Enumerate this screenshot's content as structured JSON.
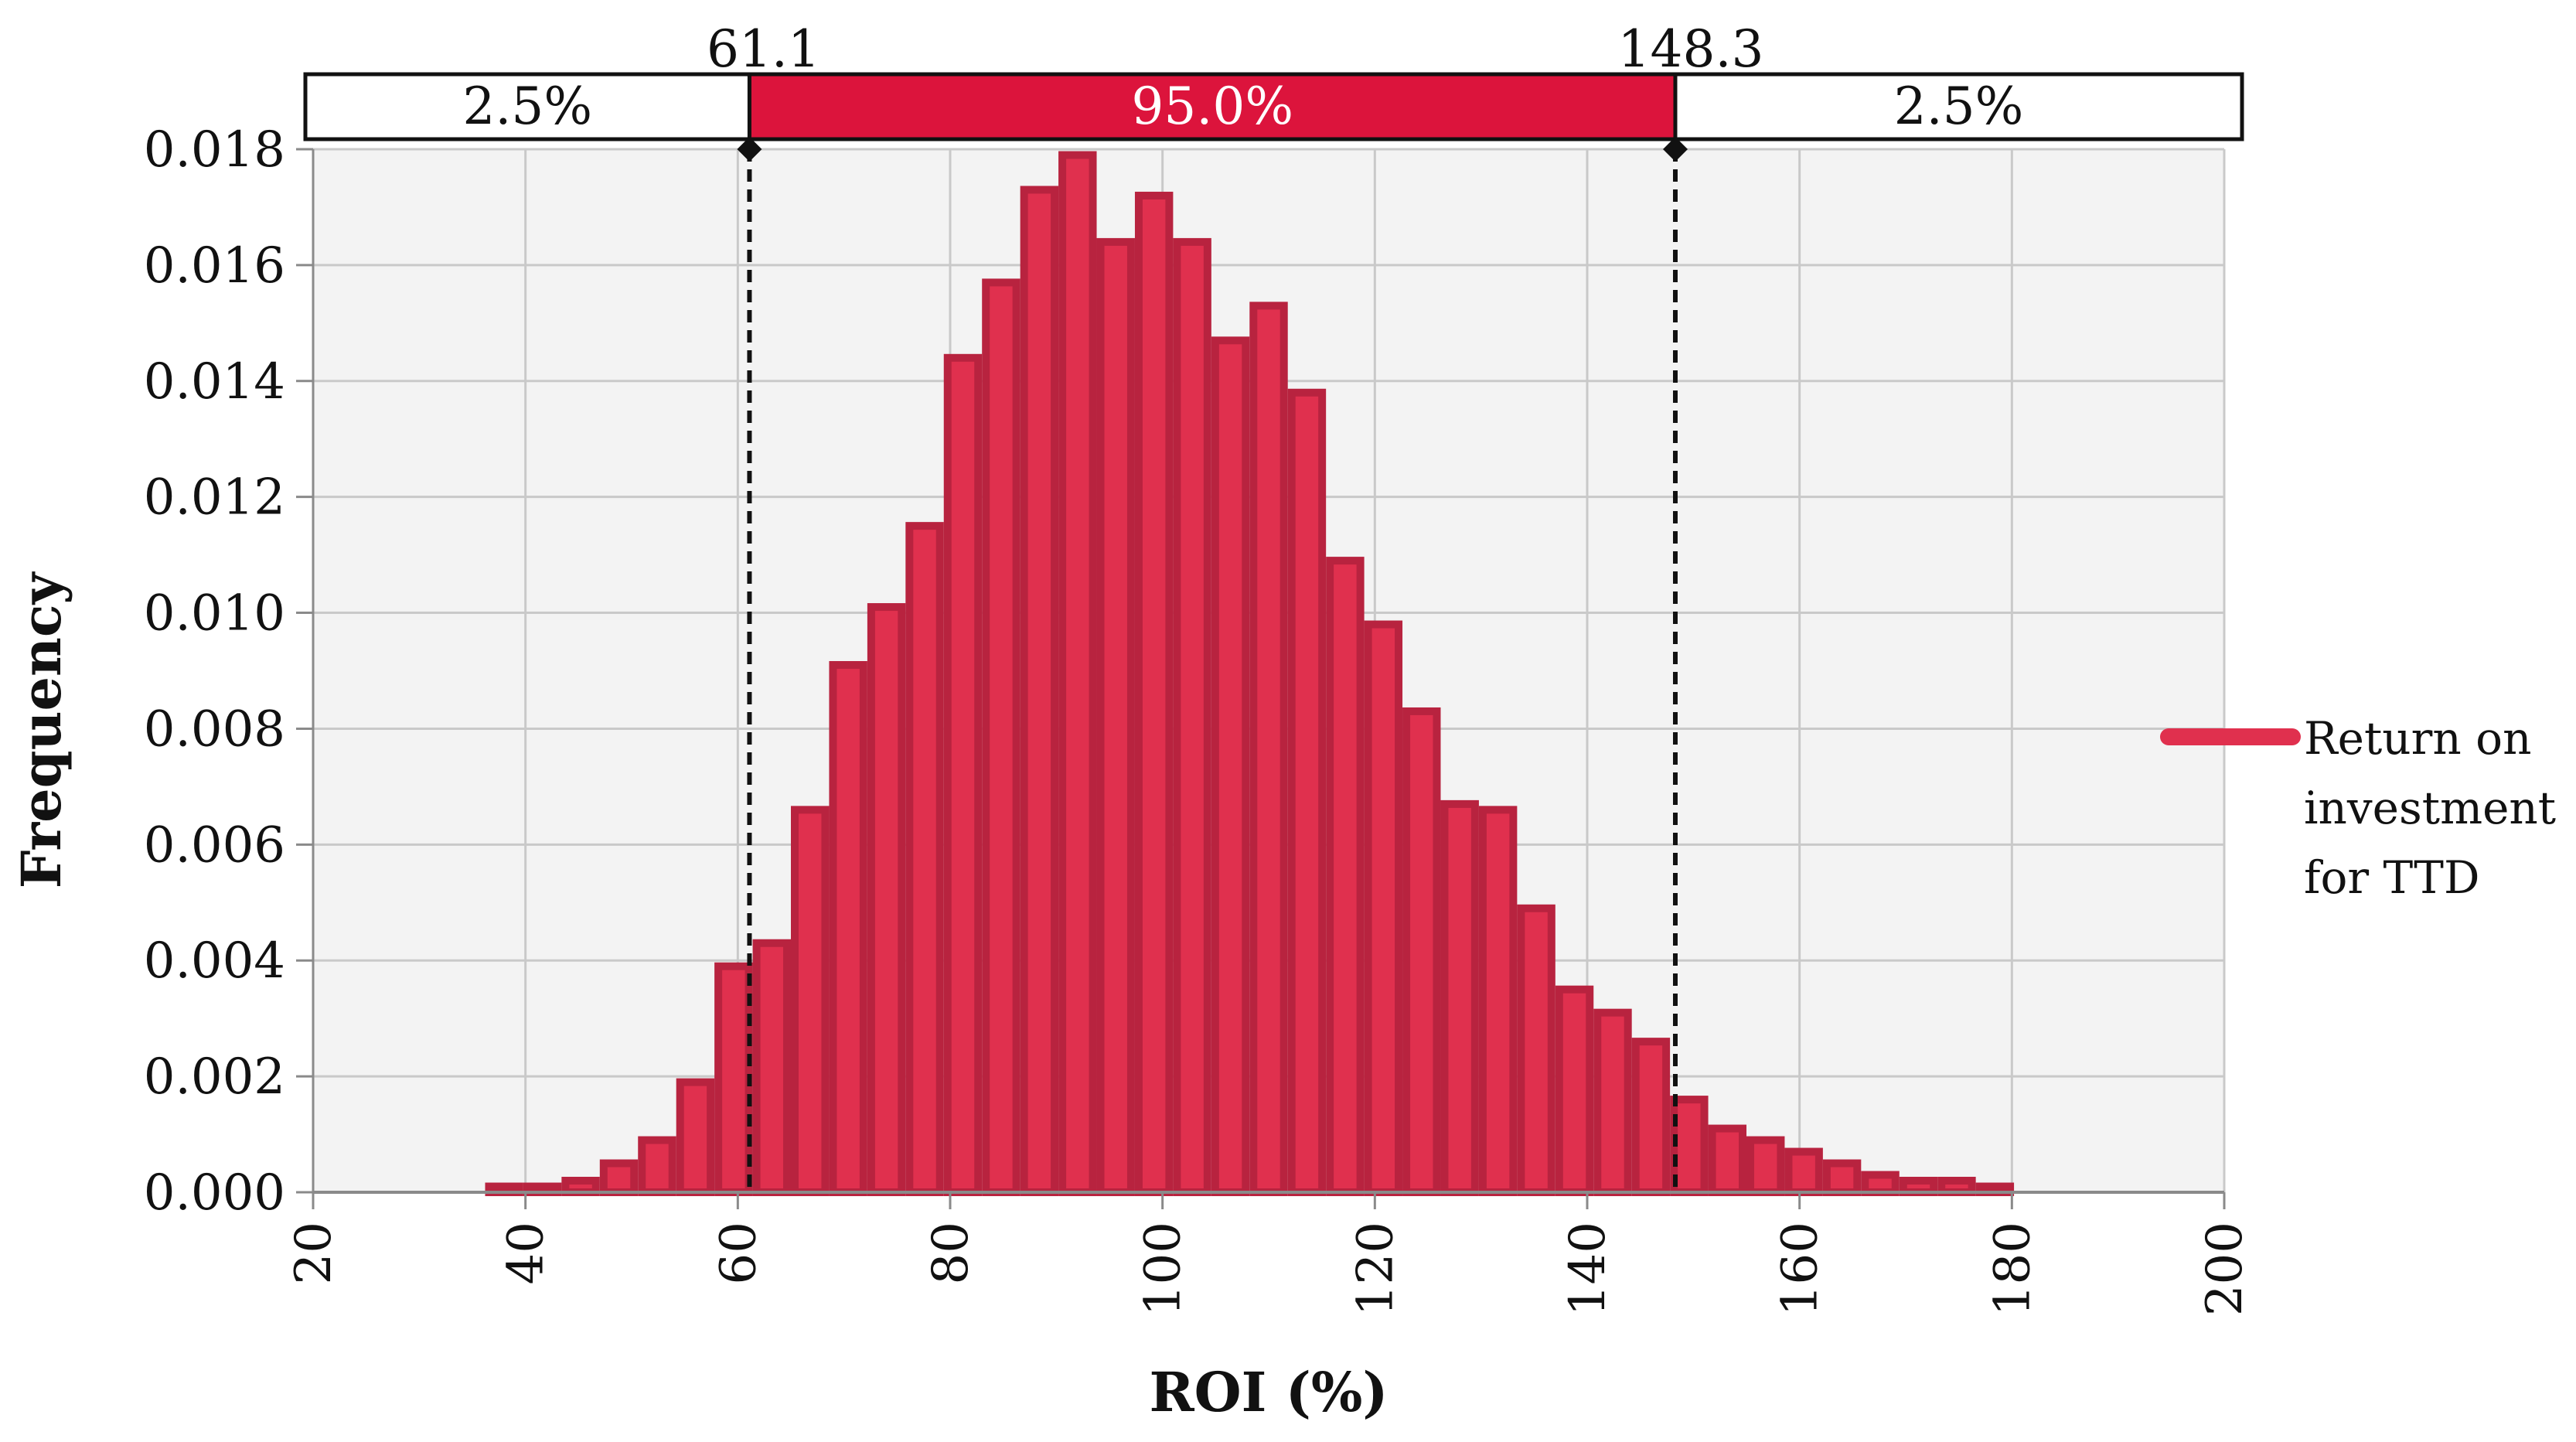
{
  "chart_data": {
    "type": "bar",
    "xlabel": "ROI (%)",
    "ylabel": "Frequency",
    "xlim": [
      20,
      200
    ],
    "ylim": [
      0,
      0.018
    ],
    "x_ticks": [
      "20",
      "40",
      "60",
      "80",
      "100",
      "120",
      "140",
      "160",
      "180",
      "200"
    ],
    "y_ticks": [
      "0.000",
      "0.002",
      "0.004",
      "0.006",
      "0.008",
      "0.010",
      "0.012",
      "0.014",
      "0.016",
      "0.018"
    ],
    "grid": true,
    "legend": {
      "position": "right",
      "entries": [
        "Return on investment for TTD"
      ]
    },
    "bin_width": 3.6,
    "bin_start": 36.2,
    "series": [
      {
        "name": "Return on investment for TTD",
        "color": "#e0304e",
        "edge_color": "#b8233f",
        "values": [
          0.0001,
          0.0001,
          0.0002,
          0.0005,
          0.0009,
          0.0019,
          0.0039,
          0.0043,
          0.0066,
          0.0091,
          0.0101,
          0.0115,
          0.0144,
          0.0157,
          0.0173,
          0.0179,
          0.0164,
          0.0172,
          0.0164,
          0.0147,
          0.0153,
          0.0138,
          0.0109,
          0.0098,
          0.0083,
          0.0067,
          0.0066,
          0.0049,
          0.0035,
          0.0031,
          0.0026,
          0.0016,
          0.0011,
          0.0009,
          0.0007,
          0.0005,
          0.0003,
          0.0002,
          0.0002,
          0.0001
        ]
      }
    ],
    "interval": {
      "lower": 61.1,
      "upper": 148.3,
      "lower_label": "61.1",
      "upper_label": "148.3",
      "band_labels": [
        "2.5%",
        "95.0%",
        "2.5%"
      ],
      "band_color": "#dc143c"
    }
  },
  "legend_lines": [
    "Return on",
    "investment",
    "for TTD"
  ]
}
